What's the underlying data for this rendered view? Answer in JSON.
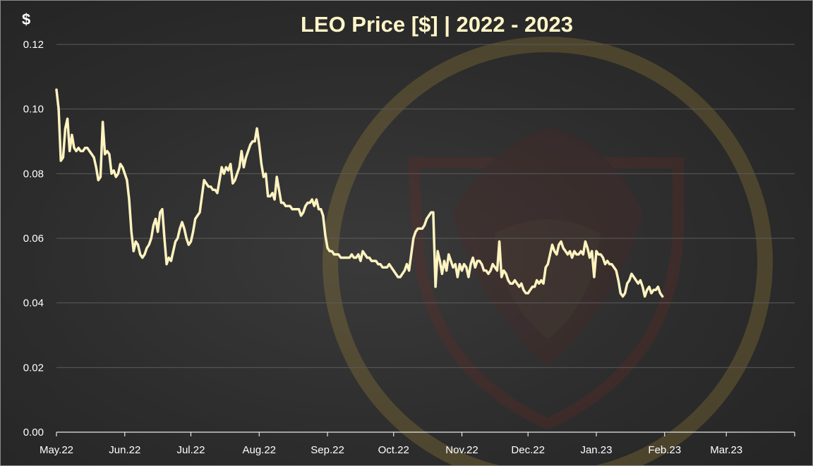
{
  "chart_data": {
    "type": "line",
    "title": "LEO Price [$] | 2022 - 2023",
    "ylabel": "$",
    "xlabel": "",
    "ylim": [
      0,
      0.12
    ],
    "yticks": [
      "0.00",
      "0.02",
      "0.04",
      "0.06",
      "0.08",
      "0.10",
      "0.12"
    ],
    "grid": true,
    "legend": "none",
    "line_color": "#fff3c0",
    "background_color": "#2c2c2c",
    "months": [
      "May.22",
      "Jun.22",
      "Jul.22",
      "Aug.22",
      "Sep.22",
      "Oct.22",
      "Nov.22",
      "Dec.22",
      "Jan.23",
      "Feb.23",
      "Mar.23"
    ],
    "x_start": "2022-05-01",
    "series": [
      {
        "name": "",
        "points": [
          [
            "2022-05-01",
            0.106
          ],
          [
            "2022-05-02",
            0.1
          ],
          [
            "2022-05-03",
            0.084
          ],
          [
            "2022-05-04",
            0.085
          ],
          [
            "2022-05-05",
            0.094
          ],
          [
            "2022-05-06",
            0.097
          ],
          [
            "2022-05-07",
            0.087
          ],
          [
            "2022-05-08",
            0.092
          ],
          [
            "2022-05-09",
            0.088
          ],
          [
            "2022-05-10",
            0.087
          ],
          [
            "2022-05-11",
            0.088
          ],
          [
            "2022-05-12",
            0.087
          ],
          [
            "2022-05-13",
            0.087
          ],
          [
            "2022-05-14",
            0.088
          ],
          [
            "2022-05-15",
            0.088
          ],
          [
            "2022-05-16",
            0.087
          ],
          [
            "2022-05-17",
            0.086
          ],
          [
            "2022-05-18",
            0.085
          ],
          [
            "2022-05-19",
            0.082
          ],
          [
            "2022-05-20",
            0.078
          ],
          [
            "2022-05-21",
            0.079
          ],
          [
            "2022-05-22",
            0.096
          ],
          [
            "2022-05-23",
            0.086
          ],
          [
            "2022-05-24",
            0.087
          ],
          [
            "2022-05-25",
            0.086
          ],
          [
            "2022-05-26",
            0.08
          ],
          [
            "2022-05-27",
            0.081
          ],
          [
            "2022-05-28",
            0.079
          ],
          [
            "2022-05-29",
            0.08
          ],
          [
            "2022-05-30",
            0.083
          ],
          [
            "2022-05-31",
            0.082
          ],
          [
            "2022-06-01",
            0.08
          ],
          [
            "2022-06-02",
            0.078
          ],
          [
            "2022-06-03",
            0.072
          ],
          [
            "2022-06-04",
            0.062
          ],
          [
            "2022-06-05",
            0.056
          ],
          [
            "2022-06-06",
            0.059
          ],
          [
            "2022-06-07",
            0.058
          ],
          [
            "2022-06-08",
            0.055
          ],
          [
            "2022-06-09",
            0.054
          ],
          [
            "2022-06-10",
            0.055
          ],
          [
            "2022-06-11",
            0.057
          ],
          [
            "2022-06-12",
            0.058
          ],
          [
            "2022-06-13",
            0.06
          ],
          [
            "2022-06-14",
            0.064
          ],
          [
            "2022-06-15",
            0.066
          ],
          [
            "2022-06-16",
            0.062
          ],
          [
            "2022-06-17",
            0.068
          ],
          [
            "2022-06-18",
            0.069
          ],
          [
            "2022-06-19",
            0.06
          ],
          [
            "2022-06-20",
            0.052
          ],
          [
            "2022-06-21",
            0.054
          ],
          [
            "2022-06-22",
            0.053
          ],
          [
            "2022-06-23",
            0.056
          ],
          [
            "2022-06-24",
            0.059
          ],
          [
            "2022-06-25",
            0.06
          ],
          [
            "2022-06-26",
            0.063
          ],
          [
            "2022-06-27",
            0.065
          ],
          [
            "2022-06-28",
            0.063
          ],
          [
            "2022-06-29",
            0.06
          ],
          [
            "2022-06-30",
            0.058
          ],
          [
            "2022-07-01",
            0.059
          ],
          [
            "2022-07-02",
            0.062
          ],
          [
            "2022-07-03",
            0.066
          ],
          [
            "2022-07-04",
            0.067
          ],
          [
            "2022-07-05",
            0.068
          ],
          [
            "2022-07-06",
            0.073
          ],
          [
            "2022-07-07",
            0.078
          ],
          [
            "2022-07-08",
            0.077
          ],
          [
            "2022-07-09",
            0.076
          ],
          [
            "2022-07-10",
            0.076
          ],
          [
            "2022-07-11",
            0.075
          ],
          [
            "2022-07-12",
            0.075
          ],
          [
            "2022-07-13",
            0.074
          ],
          [
            "2022-07-14",
            0.078
          ],
          [
            "2022-07-15",
            0.082
          ],
          [
            "2022-07-16",
            0.08
          ],
          [
            "2022-07-17",
            0.082
          ],
          [
            "2022-07-18",
            0.081
          ],
          [
            "2022-07-19",
            0.083
          ],
          [
            "2022-07-20",
            0.077
          ],
          [
            "2022-07-21",
            0.078
          ],
          [
            "2022-07-22",
            0.08
          ],
          [
            "2022-07-23",
            0.082
          ],
          [
            "2022-07-24",
            0.087
          ],
          [
            "2022-07-25",
            0.082
          ],
          [
            "2022-07-26",
            0.085
          ],
          [
            "2022-07-27",
            0.087
          ],
          [
            "2022-07-28",
            0.089
          ],
          [
            "2022-07-29",
            0.09
          ],
          [
            "2022-07-30",
            0.09
          ],
          [
            "2022-07-31",
            0.094
          ],
          [
            "2022-08-01",
            0.089
          ],
          [
            "2022-08-02",
            0.083
          ],
          [
            "2022-08-03",
            0.079
          ],
          [
            "2022-08-04",
            0.08
          ],
          [
            "2022-08-05",
            0.073
          ],
          [
            "2022-08-06",
            0.073
          ],
          [
            "2022-08-07",
            0.074
          ],
          [
            "2022-08-08",
            0.072
          ],
          [
            "2022-08-09",
            0.079
          ],
          [
            "2022-08-10",
            0.075
          ],
          [
            "2022-08-11",
            0.071
          ],
          [
            "2022-08-12",
            0.071
          ],
          [
            "2022-08-13",
            0.07
          ],
          [
            "2022-08-14",
            0.07
          ],
          [
            "2022-08-15",
            0.07
          ],
          [
            "2022-08-16",
            0.069
          ],
          [
            "2022-08-17",
            0.069
          ],
          [
            "2022-08-18",
            0.069
          ],
          [
            "2022-08-19",
            0.069
          ],
          [
            "2022-08-20",
            0.067
          ],
          [
            "2022-08-21",
            0.068
          ],
          [
            "2022-08-22",
            0.07
          ],
          [
            "2022-08-23",
            0.071
          ],
          [
            "2022-08-24",
            0.071
          ],
          [
            "2022-08-25",
            0.072
          ],
          [
            "2022-08-26",
            0.07
          ],
          [
            "2022-08-27",
            0.072
          ],
          [
            "2022-08-28",
            0.069
          ],
          [
            "2022-08-29",
            0.069
          ],
          [
            "2022-08-30",
            0.067
          ],
          [
            "2022-08-31",
            0.061
          ],
          [
            "2022-09-01",
            0.057
          ],
          [
            "2022-09-02",
            0.056
          ],
          [
            "2022-09-03",
            0.056
          ],
          [
            "2022-09-04",
            0.055
          ],
          [
            "2022-09-05",
            0.055
          ],
          [
            "2022-09-06",
            0.055
          ],
          [
            "2022-09-07",
            0.054
          ],
          [
            "2022-09-08",
            0.054
          ],
          [
            "2022-09-09",
            0.054
          ],
          [
            "2022-09-10",
            0.054
          ],
          [
            "2022-09-11",
            0.054
          ],
          [
            "2022-09-12",
            0.055
          ],
          [
            "2022-09-13",
            0.054
          ],
          [
            "2022-09-14",
            0.054
          ],
          [
            "2022-09-15",
            0.055
          ],
          [
            "2022-09-16",
            0.053
          ],
          [
            "2022-09-17",
            0.056
          ],
          [
            "2022-09-18",
            0.055
          ],
          [
            "2022-09-19",
            0.054
          ],
          [
            "2022-09-20",
            0.054
          ],
          [
            "2022-09-21",
            0.053
          ],
          [
            "2022-09-22",
            0.053
          ],
          [
            "2022-09-23",
            0.053
          ],
          [
            "2022-09-24",
            0.052
          ],
          [
            "2022-09-25",
            0.052
          ],
          [
            "2022-09-26",
            0.051
          ],
          [
            "2022-09-27",
            0.051
          ],
          [
            "2022-09-28",
            0.051
          ],
          [
            "2022-09-29",
            0.052
          ],
          [
            "2022-09-30",
            0.051
          ],
          [
            "2022-10-01",
            0.05
          ],
          [
            "2022-10-02",
            0.049
          ],
          [
            "2022-10-03",
            0.048
          ],
          [
            "2022-10-04",
            0.048
          ],
          [
            "2022-10-05",
            0.049
          ],
          [
            "2022-10-06",
            0.05
          ],
          [
            "2022-10-07",
            0.052
          ],
          [
            "2022-10-08",
            0.05
          ],
          [
            "2022-10-09",
            0.055
          ],
          [
            "2022-10-10",
            0.06
          ],
          [
            "2022-10-11",
            0.062
          ],
          [
            "2022-10-12",
            0.063
          ],
          [
            "2022-10-13",
            0.063
          ],
          [
            "2022-10-14",
            0.063
          ],
          [
            "2022-10-15",
            0.064
          ],
          [
            "2022-10-16",
            0.066
          ],
          [
            "2022-10-17",
            0.067
          ],
          [
            "2022-10-18",
            0.068
          ],
          [
            "2022-10-19",
            0.068
          ],
          [
            "2022-10-20",
            0.045
          ],
          [
            "2022-10-21",
            0.056
          ],
          [
            "2022-10-22",
            0.053
          ],
          [
            "2022-10-23",
            0.049
          ],
          [
            "2022-10-24",
            0.053
          ],
          [
            "2022-10-25",
            0.05
          ],
          [
            "2022-10-26",
            0.055
          ],
          [
            "2022-10-27",
            0.053
          ],
          [
            "2022-10-28",
            0.051
          ],
          [
            "2022-10-29",
            0.052
          ],
          [
            "2022-10-30",
            0.048
          ],
          [
            "2022-10-31",
            0.052
          ],
          [
            "2022-11-01",
            0.05
          ],
          [
            "2022-11-02",
            0.052
          ],
          [
            "2022-11-03",
            0.051
          ],
          [
            "2022-11-04",
            0.048
          ],
          [
            "2022-11-05",
            0.052
          ],
          [
            "2022-11-06",
            0.054
          ],
          [
            "2022-11-07",
            0.051
          ],
          [
            "2022-11-08",
            0.053
          ],
          [
            "2022-11-09",
            0.053
          ],
          [
            "2022-11-10",
            0.052
          ],
          [
            "2022-11-11",
            0.05
          ],
          [
            "2022-11-12",
            0.05
          ],
          [
            "2022-11-13",
            0.049
          ],
          [
            "2022-11-14",
            0.05
          ],
          [
            "2022-11-15",
            0.052
          ],
          [
            "2022-11-16",
            0.051
          ],
          [
            "2022-11-17",
            0.05
          ],
          [
            "2022-11-18",
            0.059
          ],
          [
            "2022-11-19",
            0.048
          ],
          [
            "2022-11-20",
            0.05
          ],
          [
            "2022-11-21",
            0.049
          ],
          [
            "2022-11-22",
            0.047
          ],
          [
            "2022-11-23",
            0.046
          ],
          [
            "2022-11-24",
            0.046
          ],
          [
            "2022-11-25",
            0.047
          ],
          [
            "2022-11-26",
            0.046
          ],
          [
            "2022-11-27",
            0.045
          ],
          [
            "2022-11-28",
            0.046
          ],
          [
            "2022-11-29",
            0.044
          ],
          [
            "2022-11-30",
            0.043
          ],
          [
            "2022-12-01",
            0.043
          ],
          [
            "2022-12-02",
            0.044
          ],
          [
            "2022-12-03",
            0.045
          ],
          [
            "2022-12-04",
            0.045
          ],
          [
            "2022-12-05",
            0.047
          ],
          [
            "2022-12-06",
            0.046
          ],
          [
            "2022-12-07",
            0.047
          ],
          [
            "2022-12-08",
            0.046
          ],
          [
            "2022-12-09",
            0.051
          ],
          [
            "2022-12-10",
            0.052
          ],
          [
            "2022-12-11",
            0.055
          ],
          [
            "2022-12-12",
            0.058
          ],
          [
            "2022-12-13",
            0.056
          ],
          [
            "2022-12-14",
            0.055
          ],
          [
            "2022-12-15",
            0.058
          ],
          [
            "2022-12-16",
            0.059
          ],
          [
            "2022-12-17",
            0.057
          ],
          [
            "2022-12-18",
            0.056
          ],
          [
            "2022-12-19",
            0.055
          ],
          [
            "2022-12-20",
            0.056
          ],
          [
            "2022-12-21",
            0.054
          ],
          [
            "2022-12-22",
            0.056
          ],
          [
            "2022-12-23",
            0.055
          ],
          [
            "2022-12-24",
            0.055
          ],
          [
            "2022-12-25",
            0.056
          ],
          [
            "2022-12-26",
            0.055
          ],
          [
            "2022-12-27",
            0.059
          ],
          [
            "2022-12-28",
            0.057
          ],
          [
            "2022-12-29",
            0.054
          ],
          [
            "2022-12-30",
            0.056
          ],
          [
            "2022-12-31",
            0.048
          ],
          [
            "2023-01-01",
            0.056
          ],
          [
            "2023-01-02",
            0.055
          ],
          [
            "2023-01-03",
            0.055
          ],
          [
            "2023-01-04",
            0.054
          ],
          [
            "2023-01-05",
            0.052
          ],
          [
            "2023-01-06",
            0.053
          ],
          [
            "2023-01-07",
            0.052
          ],
          [
            "2023-01-08",
            0.052
          ],
          [
            "2023-01-09",
            0.051
          ],
          [
            "2023-01-10",
            0.05
          ],
          [
            "2023-01-11",
            0.047
          ],
          [
            "2023-01-12",
            0.043
          ],
          [
            "2023-01-13",
            0.042
          ],
          [
            "2023-01-14",
            0.043
          ],
          [
            "2023-01-15",
            0.046
          ],
          [
            "2023-01-16",
            0.047
          ],
          [
            "2023-01-17",
            0.049
          ],
          [
            "2023-01-18",
            0.048
          ],
          [
            "2023-01-19",
            0.047
          ],
          [
            "2023-01-20",
            0.046
          ],
          [
            "2023-01-21",
            0.047
          ],
          [
            "2023-01-22",
            0.045
          ],
          [
            "2023-01-23",
            0.042
          ],
          [
            "2023-01-24",
            0.044
          ],
          [
            "2023-01-25",
            0.045
          ],
          [
            "2023-01-26",
            0.043
          ],
          [
            "2023-01-27",
            0.044
          ],
          [
            "2023-01-28",
            0.044
          ],
          [
            "2023-01-29",
            0.045
          ],
          [
            "2023-01-30",
            0.043
          ],
          [
            "2023-01-31",
            0.042
          ]
        ]
      }
    ]
  }
}
